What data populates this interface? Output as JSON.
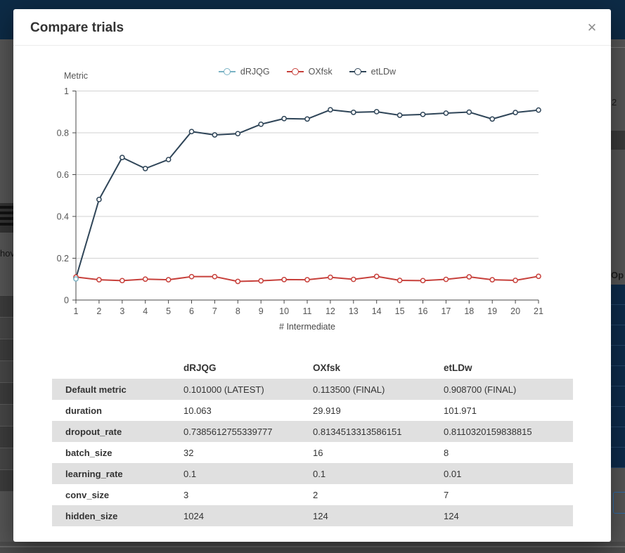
{
  "backdrop": {
    "left_text_fragment": "hov",
    "right_text_fragment": "Op",
    "right_number_fragment": "2",
    "topbar_color": "#0d2b46",
    "overlay_color": "#575757",
    "selected_row_color": "#0e2c4c"
  },
  "modal": {
    "title": "Compare trials",
    "close_glyph": "✕"
  },
  "chart_data": {
    "type": "line",
    "title": "",
    "ylabel": "Metric",
    "xlabel": "# Intermediate",
    "xlim": [
      1,
      21
    ],
    "ylim": [
      0,
      1
    ],
    "grid": true,
    "legend_position": "top",
    "x": [
      1,
      2,
      3,
      4,
      5,
      6,
      7,
      8,
      9,
      10,
      11,
      12,
      13,
      14,
      15,
      16,
      17,
      18,
      19,
      20,
      21
    ],
    "yticks": [
      0,
      0.2,
      0.4,
      0.6,
      0.8,
      1
    ],
    "ytick_labels": [
      "0",
      "0.2",
      "0.4",
      "0.6",
      "0.8",
      "1"
    ],
    "series": [
      {
        "name": "dRJQG",
        "color": "#79b2c4",
        "x": [
          1
        ],
        "values": [
          0.101
        ]
      },
      {
        "name": "OXfsk",
        "color": "#c7403b",
        "x": [
          1,
          2,
          3,
          4,
          5,
          6,
          7,
          8,
          9,
          10,
          11,
          12,
          13,
          14,
          15,
          16,
          17,
          18,
          19,
          20,
          21
        ],
        "values": [
          0.11,
          0.097,
          0.093,
          0.1,
          0.097,
          0.112,
          0.112,
          0.089,
          0.092,
          0.098,
          0.097,
          0.109,
          0.099,
          0.113,
          0.094,
          0.093,
          0.099,
          0.111,
          0.097,
          0.094,
          0.1135
        ]
      },
      {
        "name": "etLDw",
        "color": "#2f4558",
        "x": [
          1,
          2,
          3,
          4,
          5,
          6,
          7,
          8,
          9,
          10,
          11,
          12,
          13,
          14,
          15,
          16,
          17,
          18,
          19,
          20,
          21
        ],
        "values": [
          0.105,
          0.481,
          0.682,
          0.629,
          0.672,
          0.806,
          0.79,
          0.796,
          0.841,
          0.868,
          0.866,
          0.91,
          0.898,
          0.901,
          0.884,
          0.888,
          0.894,
          0.899,
          0.866,
          0.897,
          0.9087
        ]
      }
    ]
  },
  "table": {
    "columns": [
      "",
      "dRJQG",
      "OXfsk",
      "etLDw"
    ],
    "rows": [
      {
        "label": "Default metric",
        "values": [
          "0.101000 (LATEST)",
          "0.113500 (FINAL)",
          "0.908700 (FINAL)"
        ]
      },
      {
        "label": "duration",
        "values": [
          "10.063",
          "29.919",
          "101.971"
        ]
      },
      {
        "label": "dropout_rate",
        "values": [
          "0.7385612755339777",
          "0.8134513313586151",
          "0.8110320159838815"
        ]
      },
      {
        "label": "batch_size",
        "values": [
          "32",
          "16",
          "8"
        ]
      },
      {
        "label": "learning_rate",
        "values": [
          "0.1",
          "0.1",
          "0.01"
        ]
      },
      {
        "label": "conv_size",
        "values": [
          "3",
          "2",
          "7"
        ]
      },
      {
        "label": "hidden_size",
        "values": [
          "1024",
          "124",
          "124"
        ]
      }
    ]
  }
}
